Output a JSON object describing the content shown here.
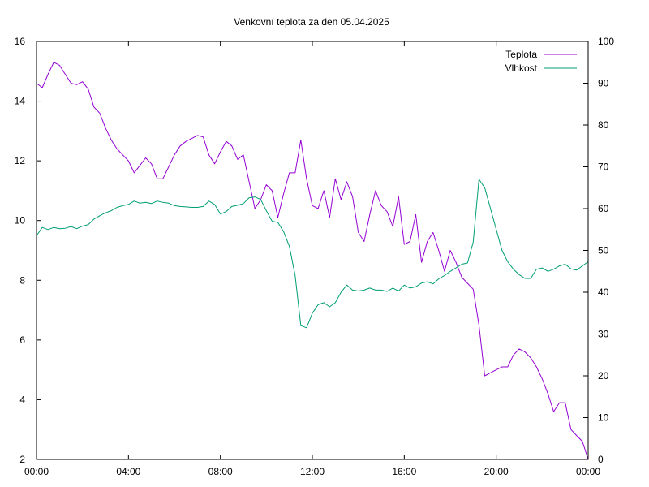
{
  "chart_data": {
    "type": "line",
    "title": "Venkovní teplota za den 05.04.2025",
    "x_tick_labels": [
      "00:00",
      "04:00",
      "08:00",
      "12:00",
      "16:00",
      "20:00",
      "00:00"
    ],
    "x_range_hours": [
      0,
      24
    ],
    "y_left": {
      "range": [
        2,
        16
      ],
      "ticks": [
        "2",
        "4",
        "6",
        "8",
        "10",
        "12",
        "14",
        "16"
      ]
    },
    "y_right": {
      "range": [
        0,
        100
      ],
      "ticks": [
        "0",
        "10",
        "20",
        "30",
        "40",
        "50",
        "60",
        "70",
        "80",
        "90",
        "100"
      ]
    },
    "grid": false,
    "legend_position": "top-right",
    "series": [
      {
        "name": "Teplota",
        "axis": "left",
        "color": "#9400d3",
        "hours": [
          0,
          0.25,
          0.5,
          0.75,
          1.0,
          1.25,
          1.5,
          1.75,
          2.0,
          2.25,
          2.5,
          2.75,
          3.0,
          3.25,
          3.5,
          3.75,
          4.0,
          4.25,
          4.5,
          4.75,
          5.0,
          5.25,
          5.5,
          5.75,
          6.0,
          6.25,
          6.5,
          6.75,
          7.0,
          7.25,
          7.5,
          7.75,
          8.0,
          8.25,
          8.5,
          8.75,
          9.0,
          9.25,
          9.5,
          9.75,
          10.0,
          10.25,
          10.5,
          10.75,
          11.0,
          11.25,
          11.5,
          11.75,
          12.0,
          12.25,
          12.5,
          12.75,
          13.0,
          13.25,
          13.5,
          13.75,
          14.0,
          14.25,
          14.5,
          14.75,
          15.0,
          15.25,
          15.5,
          15.75,
          16.0,
          16.25,
          16.5,
          16.75,
          17.0,
          17.25,
          17.5,
          17.75,
          18.0,
          18.25,
          18.5,
          18.75,
          19.0,
          19.25,
          19.5,
          19.75,
          20.0,
          20.25,
          20.5,
          20.75,
          21.0,
          21.25,
          21.5,
          21.75,
          22.0,
          22.25,
          22.5,
          22.75,
          23.0,
          23.25,
          23.5,
          23.75,
          24.0
        ],
        "values": [
          14.6,
          14.45,
          14.9,
          15.3,
          15.2,
          14.9,
          14.6,
          14.55,
          14.65,
          14.4,
          13.8,
          13.6,
          13.1,
          12.7,
          12.4,
          12.2,
          12.0,
          11.6,
          11.85,
          12.1,
          11.9,
          11.4,
          11.4,
          11.8,
          12.2,
          12.5,
          12.65,
          12.75,
          12.85,
          12.8,
          12.2,
          11.9,
          12.3,
          12.65,
          12.5,
          12.05,
          12.2,
          11.3,
          10.4,
          10.7,
          11.2,
          11.0,
          10.1,
          10.9,
          11.6,
          11.6,
          12.7,
          11.4,
          10.5,
          10.4,
          11.0,
          10.1,
          11.4,
          10.7,
          11.3,
          10.8,
          9.6,
          9.3,
          10.2,
          11.0,
          10.5,
          10.3,
          9.8,
          10.8,
          9.2,
          9.3,
          10.2,
          8.6,
          9.3,
          9.6,
          9.0,
          8.3,
          9.0,
          8.6,
          8.1,
          7.9,
          7.7,
          6.5,
          4.8,
          4.9,
          5.0,
          5.1,
          5.1,
          5.5,
          5.7,
          5.6,
          5.4,
          5.1,
          4.7,
          4.2,
          3.6,
          3.9,
          3.9,
          3.0,
          2.8,
          2.6,
          2.0
        ]
      },
      {
        "name": "Vlhkost",
        "axis": "right",
        "color": "#009e73",
        "hours": [
          0,
          0.25,
          0.5,
          0.75,
          1.0,
          1.25,
          1.5,
          1.75,
          2.0,
          2.25,
          2.5,
          2.75,
          3.0,
          3.25,
          3.5,
          3.75,
          4.0,
          4.25,
          4.5,
          4.75,
          5.0,
          5.25,
          5.5,
          5.75,
          6.0,
          6.25,
          6.5,
          6.75,
          7.0,
          7.25,
          7.5,
          7.75,
          8.0,
          8.25,
          8.5,
          8.75,
          9.0,
          9.25,
          9.5,
          9.75,
          10.0,
          10.25,
          10.5,
          10.75,
          11.0,
          11.25,
          11.5,
          11.75,
          12.0,
          12.25,
          12.5,
          12.75,
          13.0,
          13.25,
          13.5,
          13.75,
          14.0,
          14.25,
          14.5,
          14.75,
          15.0,
          15.25,
          15.5,
          15.75,
          16.0,
          16.25,
          16.5,
          16.75,
          17.0,
          17.25,
          17.5,
          17.75,
          18.0,
          18.25,
          18.5,
          18.75,
          19.0,
          19.25,
          19.5,
          19.75,
          20.0,
          20.25,
          20.5,
          20.75,
          21.0,
          21.25,
          21.5,
          21.75,
          22.0,
          22.25,
          22.5,
          22.75,
          23.0,
          23.25,
          23.5,
          23.75,
          24.0
        ],
        "values": [
          53.5,
          55.5,
          55.0,
          55.5,
          55.2,
          55.3,
          55.7,
          55.2,
          55.8,
          56.2,
          57.5,
          58.3,
          59.0,
          59.5,
          60.3,
          60.7,
          61.0,
          61.8,
          61.3,
          61.5,
          61.2,
          61.8,
          61.5,
          61.3,
          60.7,
          60.5,
          60.4,
          60.3,
          60.3,
          60.5,
          61.8,
          61.0,
          58.7,
          59.3,
          60.5,
          60.8,
          61.2,
          62.6,
          62.8,
          62.2,
          59.5,
          57.0,
          56.7,
          54.5,
          51.0,
          44.0,
          32.0,
          31.5,
          35.0,
          37.0,
          37.5,
          36.5,
          37.5,
          40.0,
          41.7,
          40.5,
          40.3,
          40.5,
          41.0,
          40.5,
          40.5,
          40.2,
          41.0,
          40.3,
          41.7,
          41.0,
          41.3,
          42.2,
          42.5,
          42.0,
          43.2,
          44.0,
          45.0,
          45.8,
          46.7,
          47.0,
          52.0,
          67.0,
          65.0,
          60.0,
          55.0,
          50.0,
          47.3,
          45.5,
          44.2,
          43.3,
          43.3,
          45.5,
          45.8,
          45.0,
          45.5,
          46.3,
          46.7,
          45.6,
          45.3,
          46.3,
          47.3
        ]
      }
    ]
  }
}
